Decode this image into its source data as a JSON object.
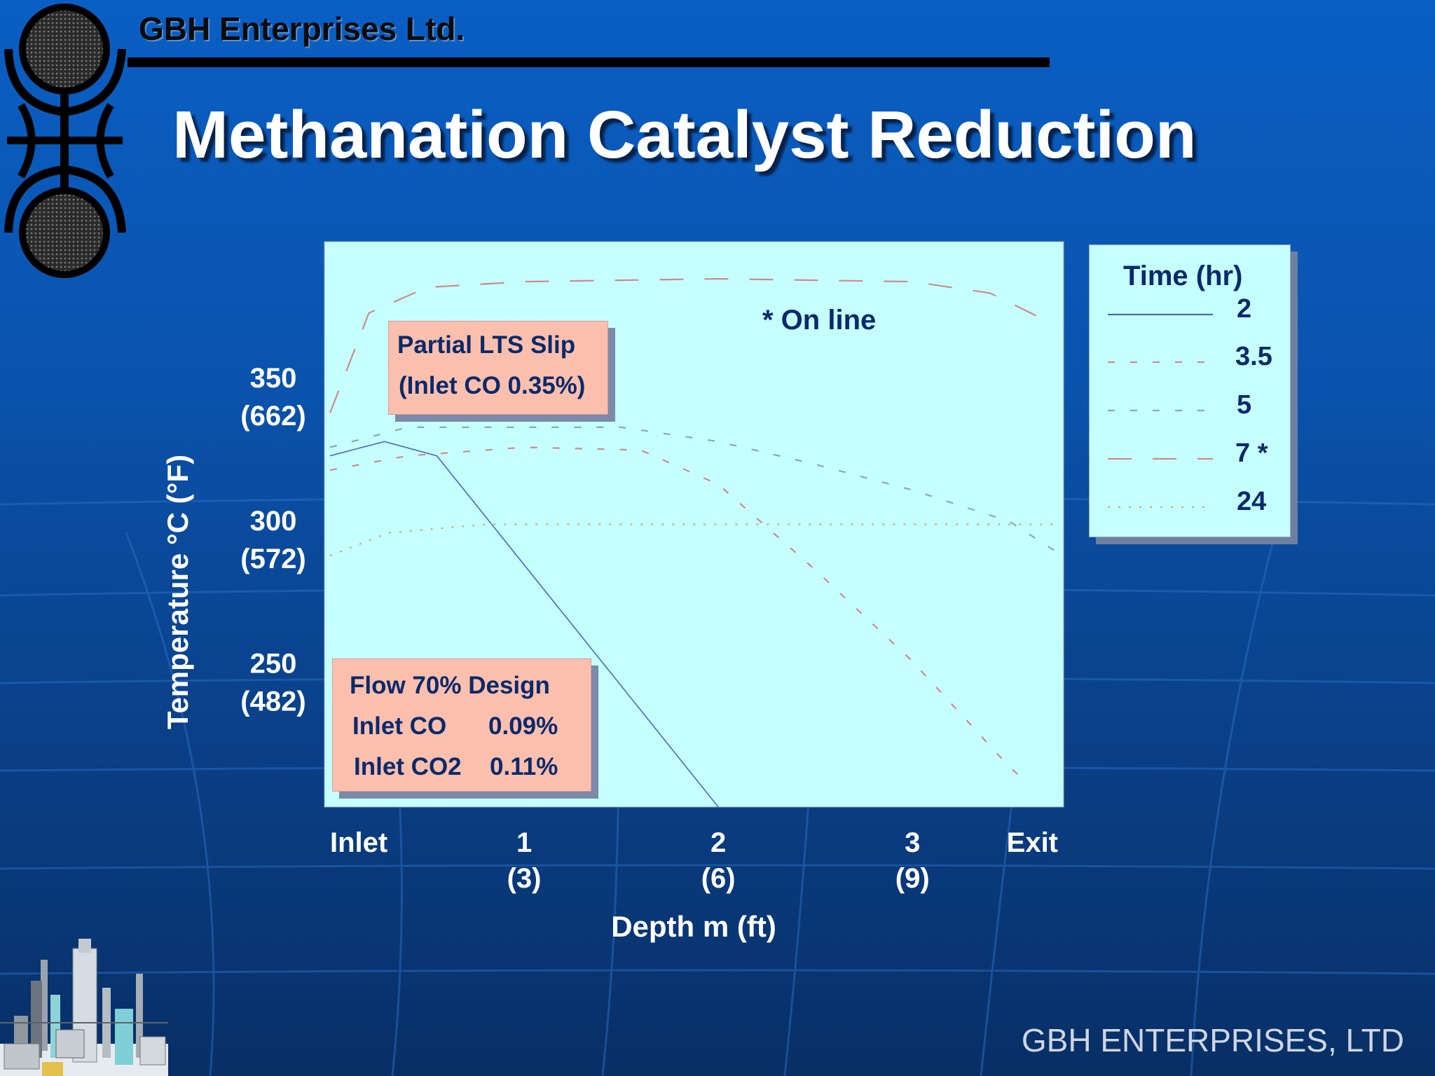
{
  "header": {
    "company": "GBH Enterprises Ltd.",
    "title": "Methanation Catalyst Reduction"
  },
  "footer": {
    "brand": "GBH ENTERPRISES, LTD"
  },
  "icons": {
    "logo": "gbh-logo-icon",
    "plant": "chemical-plant-icon"
  },
  "colors": {
    "background": "#0a5fc4",
    "plot_bg": "#c6ffff",
    "box_bg": "#fbbfae",
    "text_dark": "#0b2a6a"
  },
  "chart_data": {
    "type": "line",
    "xlabel": "Depth m (ft)",
    "ylabel": "Temperature °C (°F)",
    "x_ticks": [
      {
        "x": 0,
        "line1": "Inlet",
        "line2": ""
      },
      {
        "x": 1,
        "line1": "1",
        "line2": "(3)"
      },
      {
        "x": 2,
        "line1": "2",
        "line2": "(6)"
      },
      {
        "x": 3,
        "line1": "3",
        "line2": "(9)"
      },
      {
        "x": 3.75,
        "line1": "Exit",
        "line2": ""
      }
    ],
    "y_ticks": [
      {
        "y": 350,
        "line1": "350",
        "line2": "(662)"
      },
      {
        "y": 300,
        "line1": "300",
        "line2": "(572)"
      },
      {
        "y": 250,
        "line1": "250",
        "line2": "(482)"
      }
    ],
    "xlim": [
      0,
      3.75
    ],
    "ylim": [
      207,
      405
    ],
    "legend": {
      "title": "Time (hr)",
      "position": "right"
    },
    "series": [
      {
        "name": "2",
        "color": "#4a6bb8",
        "dash": "none",
        "points": [
          [
            0,
            330
          ],
          [
            0.28,
            335
          ],
          [
            0.55,
            330
          ],
          [
            2.0,
            207
          ]
        ]
      },
      {
        "name": "3.5",
        "color": "#d08a8a",
        "dash": "10 22",
        "points": [
          [
            0,
            325
          ],
          [
            0.4,
            330
          ],
          [
            1.0,
            333
          ],
          [
            1.6,
            332
          ],
          [
            2.0,
            320
          ],
          [
            2.5,
            290
          ],
          [
            3.0,
            258
          ],
          [
            3.5,
            221
          ],
          [
            3.6,
            215
          ]
        ]
      },
      {
        "name": "5",
        "color": "#8aaab0",
        "dash": "10 22",
        "points": [
          [
            0,
            333
          ],
          [
            0.4,
            340
          ],
          [
            1.0,
            340
          ],
          [
            1.5,
            340
          ],
          [
            2.0,
            335
          ],
          [
            2.5,
            327
          ],
          [
            3.0,
            318
          ],
          [
            3.5,
            307
          ],
          [
            3.75,
            296
          ]
        ]
      },
      {
        "name": "7 *",
        "color": "#d08a8a",
        "dash": "34 30",
        "points": [
          [
            0,
            345
          ],
          [
            0.2,
            380
          ],
          [
            0.5,
            389
          ],
          [
            1.0,
            391
          ],
          [
            2.0,
            392
          ],
          [
            3.0,
            391
          ],
          [
            3.4,
            387
          ],
          [
            3.7,
            377
          ]
        ]
      },
      {
        "name": "24",
        "color": "#c7b06a",
        "dash": "3 12",
        "points": [
          [
            0,
            295
          ],
          [
            0.3,
            303
          ],
          [
            0.8,
            306
          ],
          [
            1.5,
            306
          ],
          [
            2.5,
            306
          ],
          [
            3.0,
            306
          ],
          [
            3.75,
            306
          ]
        ]
      }
    ],
    "annotations": {
      "online": "* On line"
    }
  },
  "boxes": {
    "slip": {
      "line1": "Partial LTS Slip",
      "line2": "(Inlet CO 0.35%)"
    },
    "flow": {
      "line1": "Flow 70% Design",
      "co_label": "Inlet CO",
      "co_value": "0.09%",
      "co2_label": "Inlet CO2",
      "co2_value": "0.11%"
    }
  }
}
